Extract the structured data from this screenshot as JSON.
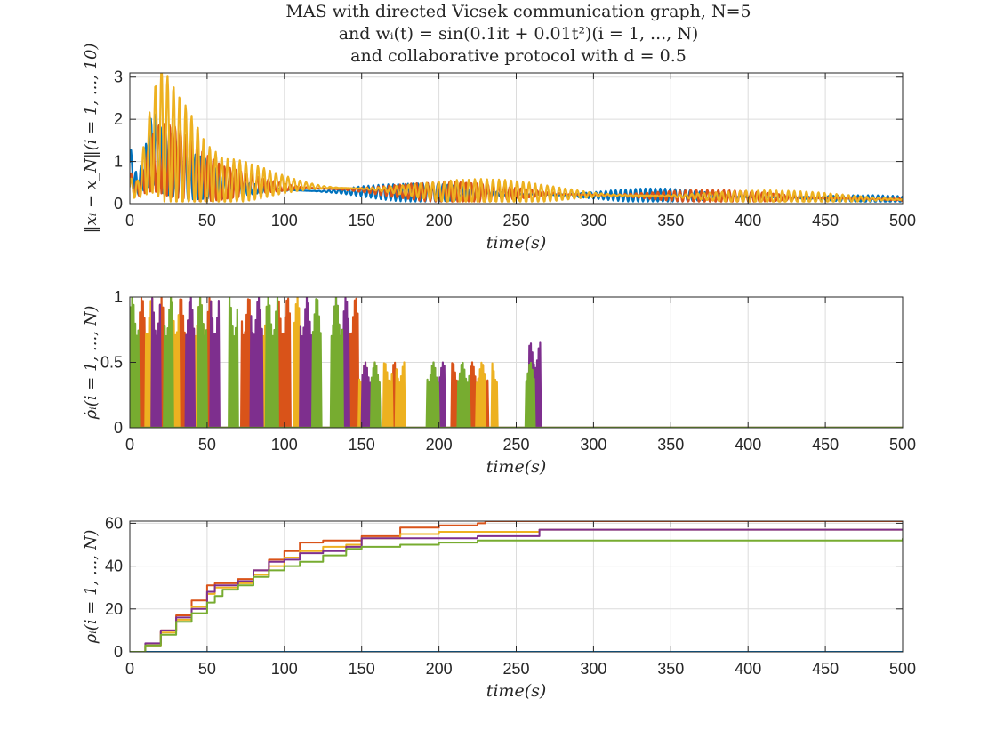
{
  "figure": {
    "title_lines": [
      "MAS with directed Vicsek communication graph, N=5",
      "and wᵢ(t) = sin(0.1it + 0.01t²)(i = 1, ..., N)",
      "and collaborative protocol with d = 0.5"
    ]
  },
  "colors": {
    "series": [
      "#0072BD",
      "#D95319",
      "#EDB120",
      "#7E2F8E",
      "#77AC30"
    ],
    "grid": "#dcdcdc",
    "axis": "#262626"
  },
  "chart_data": [
    {
      "type": "line",
      "xlabel": "time(s)",
      "ylabel": "‖xᵢ − x_N‖(i = 1, ..., 10)",
      "xlim": [
        0,
        500
      ],
      "ylim": [
        0,
        3.1
      ],
      "xticks": [
        0,
        50,
        100,
        150,
        200,
        250,
        300,
        350,
        400,
        450,
        500
      ],
      "yticks": [
        0,
        1,
        2,
        3
      ],
      "grid": true,
      "legend": "none",
      "series": [
        {
          "x": [
            0,
            5,
            10,
            15,
            20,
            30,
            40,
            50,
            60,
            75,
            100,
            125,
            150,
            175,
            200,
            250,
            300,
            350,
            400,
            450,
            500
          ],
          "y": [
            1.5,
            0.6,
            1.3,
            2.1,
            1.6,
            1.3,
            1.0,
            0.9,
            0.6,
            0.55,
            0.5,
            0.45,
            0.45,
            0.4,
            0.4,
            0.35,
            0.3,
            0.3,
            0.25,
            0.2,
            0.15
          ],
          "osc": 0.55
        },
        {
          "x": [
            0,
            5,
            10,
            15,
            20,
            30,
            40,
            50,
            60,
            75,
            100,
            125,
            150,
            175,
            200,
            250,
            300,
            350,
            400,
            450,
            500
          ],
          "y": [
            0.8,
            0.5,
            1.0,
            1.5,
            1.7,
            1.5,
            1.2,
            0.95,
            0.75,
            0.7,
            0.6,
            0.55,
            0.5,
            0.45,
            0.42,
            0.38,
            0.32,
            0.28,
            0.25,
            0.2,
            0.15
          ],
          "osc": 0.6
        },
        {
          "x": [
            0,
            5,
            10,
            15,
            20,
            30,
            40,
            50,
            60,
            75,
            100,
            125,
            150,
            175,
            200,
            250,
            300,
            350,
            400,
            450,
            500
          ],
          "y": [
            0.6,
            0.5,
            1.4,
            2.2,
            2.6,
            2.0,
            1.5,
            1.0,
            0.8,
            0.8,
            0.7,
            0.6,
            0.55,
            0.5,
            0.45,
            0.4,
            0.32,
            0.28,
            0.24,
            0.2,
            0.15
          ],
          "osc": 0.75
        }
      ]
    },
    {
      "type": "line",
      "xlabel": "time(s)",
      "ylabel": "ρ̇ᵢ(i = 1, ..., N)",
      "xlim": [
        0,
        500
      ],
      "ylim": [
        0,
        1
      ],
      "xticks": [
        0,
        50,
        100,
        150,
        200,
        250,
        300,
        350,
        400,
        450,
        500
      ],
      "yticks": [
        0,
        0.5,
        1
      ],
      "grid": true,
      "legend": "none",
      "series": [
        {
          "bursts": []
        },
        {
          "bursts": [
            [
              6,
              12,
              1
            ],
            [
              18,
              24,
              1
            ],
            [
              32,
              38,
              1
            ],
            [
              46,
              53,
              1
            ],
            [
              72,
              78,
              1
            ],
            [
              96,
              104,
              1
            ],
            [
              142,
              148,
              1
            ],
            [
              158,
              162,
              0.5
            ],
            [
              170,
              175,
              0.5
            ],
            [
              208,
              214,
              0.5
            ],
            [
              220,
              226,
              0.5
            ],
            [
              228,
              232,
              0.5
            ]
          ]
        },
        {
          "bursts": [
            [
              10,
              16,
              1
            ],
            [
              26,
              32,
              1
            ],
            [
              40,
              48,
              1
            ],
            [
              84,
              90,
              1
            ],
            [
              106,
              112,
              1
            ],
            [
              148,
              154,
              0.5
            ],
            [
              164,
              170,
              0.5
            ],
            [
              172,
              178,
              0.5
            ],
            [
              224,
              230,
              0.5
            ],
            [
              234,
              238,
              0.5
            ]
          ]
        },
        {
          "bursts": [
            [
              14,
              20,
              1
            ],
            [
              36,
              42,
              1
            ],
            [
              52,
              58,
              1
            ],
            [
              78,
              86,
              1
            ],
            [
              110,
              118,
              1
            ],
            [
              132,
              142,
              1
            ],
            [
              150,
              156,
              0.5
            ],
            [
              196,
              204,
              0.5
            ],
            [
              258,
              266,
              0.65
            ]
          ]
        },
        {
          "bursts": [
            [
              0,
              6,
              1
            ],
            [
              22,
              28,
              1
            ],
            [
              44,
              50,
              1
            ],
            [
              64,
              70,
              1
            ],
            [
              88,
              96,
              1
            ],
            [
              118,
              124,
              1
            ],
            [
              130,
              138,
              1
            ],
            [
              156,
              162,
              0.5
            ],
            [
              192,
              200,
              0.5
            ],
            [
              212,
              220,
              0.5
            ],
            [
              256,
              262,
              0.5
            ]
          ]
        }
      ]
    },
    {
      "type": "line",
      "xlabel": "time(s)",
      "ylabel": "ρᵢ(i = 1, ..., N)",
      "xlim": [
        0,
        500
      ],
      "ylim": [
        0,
        61
      ],
      "xticks": [
        0,
        50,
        100,
        150,
        200,
        250,
        300,
        350,
        400,
        450,
        500
      ],
      "yticks": [
        0,
        20,
        40,
        60
      ],
      "grid": true,
      "legend": "none",
      "series": [
        {
          "x": [
            0,
            500
          ],
          "y": [
            0,
            0
          ]
        },
        {
          "x": [
            0,
            5,
            10,
            20,
            30,
            40,
            50,
            55,
            60,
            70,
            80,
            90,
            100,
            110,
            125,
            140,
            150,
            175,
            200,
            225,
            230,
            500
          ],
          "y": [
            0,
            0,
            3,
            10,
            17,
            24,
            31,
            32,
            32,
            34,
            38,
            43,
            47,
            51,
            52,
            52,
            54,
            58,
            59,
            60,
            61,
            61
          ]
        },
        {
          "x": [
            0,
            5,
            10,
            20,
            30,
            40,
            50,
            55,
            60,
            70,
            80,
            90,
            100,
            110,
            125,
            140,
            150,
            175,
            200,
            225,
            265,
            500
          ],
          "y": [
            0,
            0,
            3,
            9,
            15,
            21,
            27,
            30,
            30,
            32,
            36,
            40,
            44,
            47,
            49,
            50,
            53,
            55,
            56,
            56,
            57,
            57
          ]
        },
        {
          "x": [
            0,
            5,
            10,
            20,
            30,
            40,
            50,
            55,
            60,
            70,
            80,
            90,
            100,
            110,
            125,
            140,
            150,
            175,
            200,
            225,
            265,
            500
          ],
          "y": [
            0,
            0,
            4,
            10,
            16,
            20,
            28,
            31,
            31,
            33,
            38,
            42,
            43,
            46,
            47,
            49,
            53,
            53,
            53,
            54,
            57,
            57
          ]
        },
        {
          "x": [
            0,
            5,
            10,
            20,
            30,
            40,
            50,
            55,
            60,
            70,
            80,
            90,
            100,
            110,
            125,
            140,
            150,
            175,
            200,
            225,
            500
          ],
          "y": [
            0,
            0,
            3,
            8,
            14,
            18,
            23,
            26,
            29,
            31,
            35,
            38,
            40,
            42,
            45,
            48,
            49,
            50,
            51,
            52,
            53
          ]
        }
      ]
    }
  ]
}
